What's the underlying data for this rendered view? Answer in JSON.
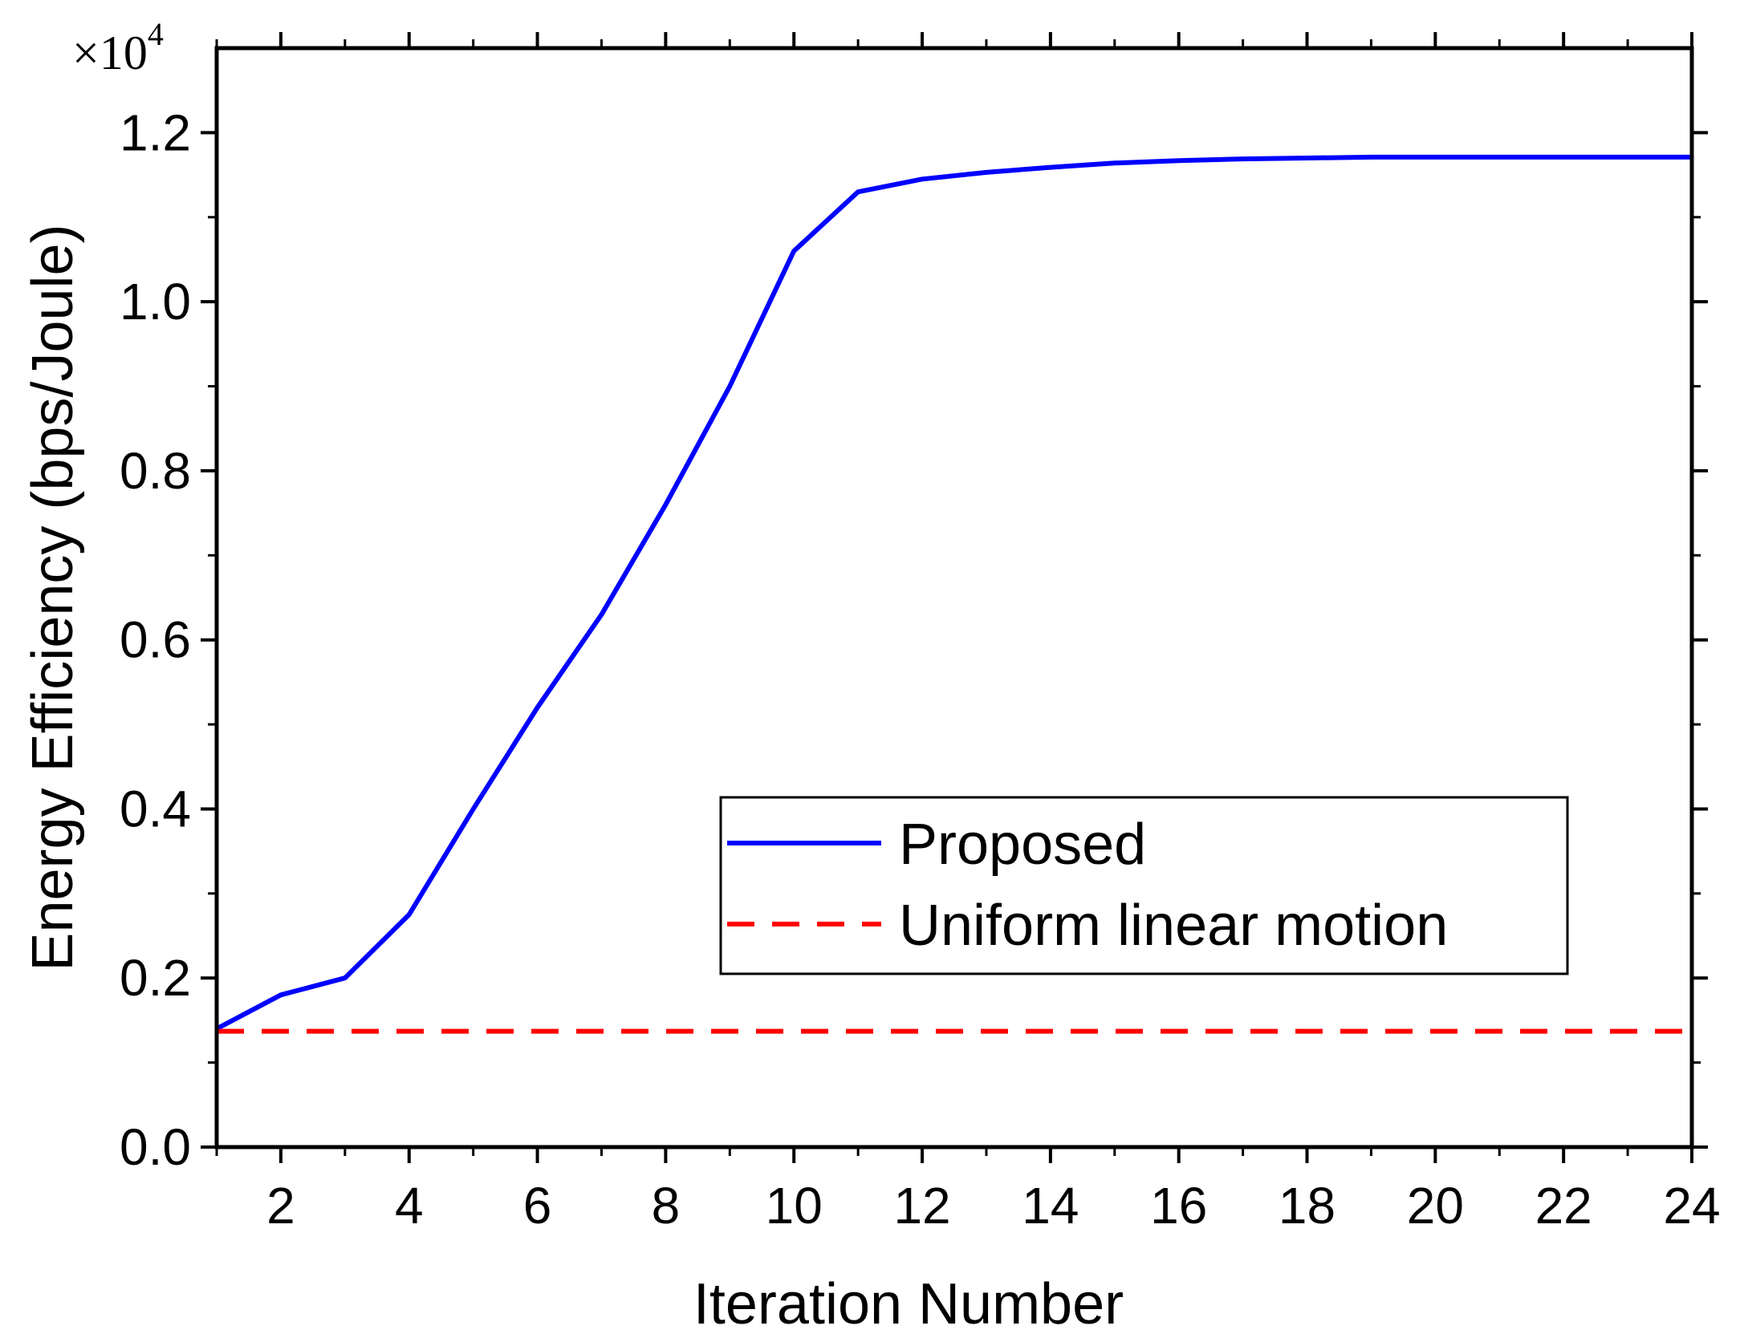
{
  "chart_data": {
    "type": "line",
    "title": "",
    "xlabel": "Iteration Number",
    "ylabel": "Energy Efficiency (bps/Joule)",
    "y_multiplier": {
      "base": "×10",
      "exponent": "4"
    },
    "xlim": [
      1,
      24
    ],
    "ylim": [
      0,
      1.3
    ],
    "x_ticks": [
      2,
      4,
      6,
      8,
      10,
      12,
      14,
      16,
      18,
      20,
      22,
      24
    ],
    "x_tick_labels": [
      "2",
      "4",
      "6",
      "8",
      "10",
      "12",
      "14",
      "16",
      "18",
      "20",
      "22",
      "24"
    ],
    "x_minor_ticks": [
      1,
      3,
      5,
      7,
      9,
      11,
      13,
      15,
      17,
      19,
      21,
      23
    ],
    "y_ticks": [
      0.0,
      0.2,
      0.4,
      0.6,
      0.8,
      1.0,
      1.2
    ],
    "y_tick_labels": [
      "0.0",
      "0.2",
      "0.4",
      "0.6",
      "0.8",
      "1.0",
      "1.2"
    ],
    "y_minor_ticks": [
      0.1,
      0.3,
      0.5,
      0.7,
      0.9,
      1.1
    ],
    "grid": false,
    "legend_position": "center-right",
    "series": [
      {
        "name": "Proposed",
        "color": "#0000ff",
        "style": "solid",
        "x": [
          1,
          2,
          3,
          4,
          5,
          6,
          7,
          8,
          9,
          10,
          11,
          12,
          13,
          14,
          15,
          16,
          17,
          18,
          19,
          20,
          21,
          22,
          23,
          24
        ],
        "y": [
          0.14,
          0.18,
          0.2,
          0.275,
          0.4,
          0.52,
          0.63,
          0.76,
          0.9,
          1.06,
          1.13,
          1.145,
          1.153,
          1.159,
          1.164,
          1.167,
          1.169,
          1.17,
          1.171,
          1.171,
          1.171,
          1.171,
          1.171,
          1.171
        ]
      },
      {
        "name": "Uniform linear motion",
        "color": "#ff0000",
        "style": "dashed",
        "x": [
          1,
          24
        ],
        "y": [
          0.137,
          0.137
        ]
      }
    ]
  }
}
